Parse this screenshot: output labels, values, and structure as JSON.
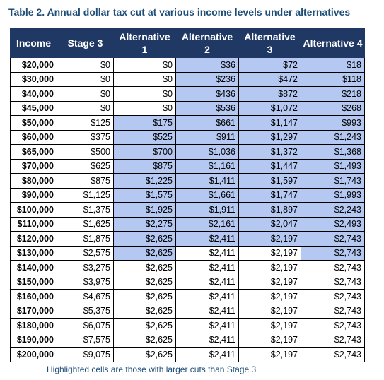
{
  "title": "Table 2. Annual dollar tax cut at various income levels under alternatives",
  "table": {
    "header": [
      "Income",
      "Stage 3",
      "Alternative 1",
      "Alternative 2",
      "Alternative 3",
      "Alternative 4"
    ],
    "rows": [
      [
        "$20,000",
        "$0",
        "$0",
        "$36",
        "$72",
        "$18"
      ],
      [
        "$30,000",
        "$0",
        "$0",
        "$236",
        "$472",
        "$118"
      ],
      [
        "$40,000",
        "$0",
        "$0",
        "$436",
        "$872",
        "$218"
      ],
      [
        "$45,000",
        "$0",
        "$0",
        "$536",
        "$1,072",
        "$268"
      ],
      [
        "$50,000",
        "$125",
        "$175",
        "$661",
        "$1,147",
        "$993"
      ],
      [
        "$60,000",
        "$375",
        "$525",
        "$911",
        "$1,297",
        "$1,243"
      ],
      [
        "$65,000",
        "$500",
        "$700",
        "$1,036",
        "$1,372",
        "$1,368"
      ],
      [
        "$70,000",
        "$625",
        "$875",
        "$1,161",
        "$1,447",
        "$1,493"
      ],
      [
        "$80,000",
        "$875",
        "$1,225",
        "$1,411",
        "$1,597",
        "$1,743"
      ],
      [
        "$90,000",
        "$1,125",
        "$1,575",
        "$1,661",
        "$1,747",
        "$1,993"
      ],
      [
        "$100,000",
        "$1,375",
        "$1,925",
        "$1,911",
        "$1,897",
        "$2,243"
      ],
      [
        "$110,000",
        "$1,625",
        "$2,275",
        "$2,161",
        "$2,047",
        "$2,493"
      ],
      [
        "$120,000",
        "$1,875",
        "$2,625",
        "$2,411",
        "$2,197",
        "$2,743"
      ],
      [
        "$130,000",
        "$2,575",
        "$2,625",
        "$2,411",
        "$2,197",
        "$2,743"
      ],
      [
        "$140,000",
        "$3,275",
        "$2,625",
        "$2,411",
        "$2,197",
        "$2,743"
      ],
      [
        "$150,000",
        "$3,975",
        "$2,625",
        "$2,411",
        "$2,197",
        "$2,743"
      ],
      [
        "$160,000",
        "$4,675",
        "$2,625",
        "$2,411",
        "$2,197",
        "$2,743"
      ],
      [
        "$170,000",
        "$5,375",
        "$2,625",
        "$2,411",
        "$2,197",
        "$2,743"
      ],
      [
        "$180,000",
        "$6,075",
        "$2,625",
        "$2,411",
        "$2,197",
        "$2,743"
      ],
      [
        "$190,000",
        "$7,575",
        "$2,625",
        "$2,411",
        "$2,197",
        "$2,743"
      ],
      [
        "$200,000",
        "$9,075",
        "$2,625",
        "$2,411",
        "$2,197",
        "$2,743"
      ]
    ],
    "highlighted": [
      [
        false,
        false,
        false,
        true,
        true,
        true
      ],
      [
        false,
        false,
        false,
        true,
        true,
        true
      ],
      [
        false,
        false,
        false,
        true,
        true,
        true
      ],
      [
        false,
        false,
        false,
        true,
        true,
        true
      ],
      [
        false,
        false,
        true,
        true,
        true,
        true
      ],
      [
        false,
        false,
        true,
        true,
        true,
        true
      ],
      [
        false,
        false,
        true,
        true,
        true,
        true
      ],
      [
        false,
        false,
        true,
        true,
        true,
        true
      ],
      [
        false,
        false,
        true,
        true,
        true,
        true
      ],
      [
        false,
        false,
        true,
        true,
        true,
        true
      ],
      [
        false,
        false,
        true,
        true,
        true,
        true
      ],
      [
        false,
        false,
        true,
        true,
        true,
        true
      ],
      [
        false,
        false,
        true,
        true,
        true,
        true
      ],
      [
        false,
        false,
        true,
        false,
        false,
        true
      ],
      [
        false,
        false,
        false,
        false,
        false,
        false
      ],
      [
        false,
        false,
        false,
        false,
        false,
        false
      ],
      [
        false,
        false,
        false,
        false,
        false,
        false
      ],
      [
        false,
        false,
        false,
        false,
        false,
        false
      ],
      [
        false,
        false,
        false,
        false,
        false,
        false
      ],
      [
        false,
        false,
        false,
        false,
        false,
        false
      ],
      [
        false,
        false,
        false,
        false,
        false,
        false
      ]
    ]
  },
  "footnote": "Highlighted cells are those with larger cuts than Stage 3"
}
